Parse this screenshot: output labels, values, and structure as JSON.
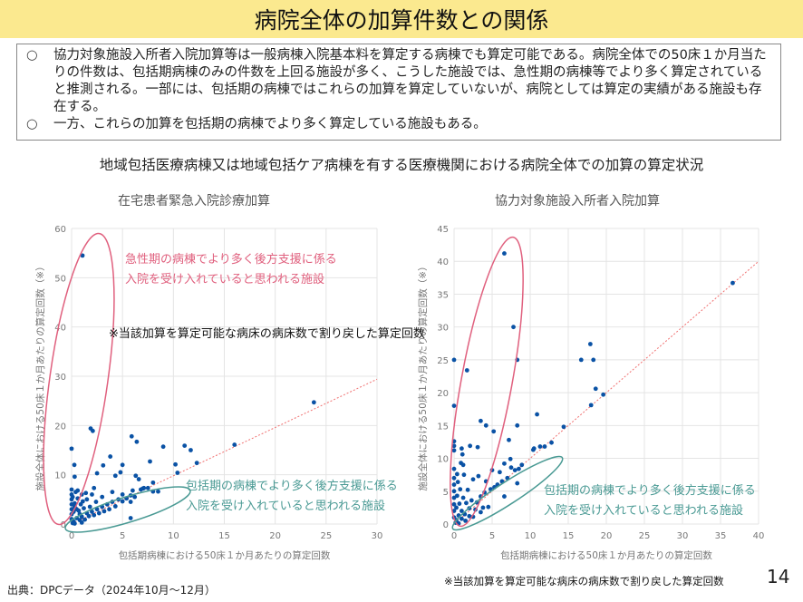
{
  "header": {
    "title": "病院全体の加算件数との関係"
  },
  "summary": {
    "bullet_mark": "○",
    "items": [
      "協力対象施設入所者入院加算等は一般病棟入院基本料を算定する病棟でも算定可能である。病院全体での50床１か月当たりの件数は、包括期病棟のみの件数を上回る施設が多く、こうした施設では、急性期の病棟等でより多く算定されていると推測される。一部には、包括期の病棟ではこれらの加算を算定していないが、病院としては算定の実績がある施設も存在する。",
      "一方、これらの加算を包括期の病棟でより多く算定している施設もある。"
    ]
  },
  "subtitle": "地域包括医療病棟又は地域包括ケア病棟を有する医療機関における病院全体での加算の算定状況",
  "note": "※当該加算を算定可能な病床の病床数で割り戻した算定回数",
  "source": "出典：DPCデータ（2024年10月～12月）",
  "page_number": "14",
  "colors": {
    "title_band": "#fbe98f",
    "dot": "#0a52a5",
    "acute_ellipse": "#e0607e",
    "inclusive_ellipse": "#4a9a94",
    "reference_line": "#f07070",
    "grid": "#e4e4e4"
  },
  "chart_data": [
    {
      "type": "scatter",
      "title": "在宅患者緊急入院診療加算",
      "xlabel": "包括期病棟における50床１か月あたりの算定回数",
      "ylabel": "施設全体における50床１か月あたりの算定回数（※）",
      "xlim": [
        0,
        30
      ],
      "ylim": [
        0,
        60
      ],
      "xticks": [
        0,
        5,
        10,
        15,
        20,
        25,
        30
      ],
      "yticks": [
        0,
        10,
        20,
        30,
        40,
        50,
        60
      ],
      "grid": true,
      "reference_line": {
        "style": "dotted",
        "from": [
          0,
          0
        ],
        "to": [
          30,
          29.4
        ]
      },
      "annotations": [
        {
          "text_lines": [
            "急性期の病棟でより多く後方支援に係る",
            "入院を受け入れていると思われる施設"
          ],
          "color": "#e0607e"
        },
        {
          "text_lines": [
            "包括期の病棟でより多く後方支援に係る",
            "入院を受け入れていると思われる施設"
          ],
          "color": "#4a9a94"
        }
      ],
      "points": [
        [
          1.07,
          54.5
        ],
        [
          1.87,
          19.4
        ],
        [
          2.08,
          18.9
        ],
        [
          0,
          15.3
        ],
        [
          5.9,
          17.8
        ],
        [
          6.4,
          16.7
        ],
        [
          9.0,
          15.7
        ],
        [
          11.1,
          15.9
        ],
        [
          11.7,
          15.0
        ],
        [
          12.3,
          12.4
        ],
        [
          16.0,
          16.1
        ],
        [
          23.8,
          24.7
        ],
        [
          3.8,
          13.7
        ],
        [
          0.27,
          12.0
        ],
        [
          0.3,
          9.6
        ],
        [
          3.1,
          11.9
        ],
        [
          5.0,
          12.0
        ],
        [
          10.2,
          12.1
        ],
        [
          10.4,
          10.4
        ],
        [
          7.7,
          12.7
        ],
        [
          2.5,
          10.3
        ],
        [
          4.3,
          9.8
        ],
        [
          4.8,
          10.5
        ],
        [
          6.3,
          9.8
        ],
        [
          6.6,
          9.1
        ],
        [
          8.0,
          8.4
        ],
        [
          8.5,
          6.6
        ],
        [
          5.8,
          1.2
        ],
        [
          8.0,
          6.6
        ],
        [
          7.1,
          7.3
        ],
        [
          0,
          1
        ],
        [
          0,
          2
        ],
        [
          0,
          3
        ],
        [
          0,
          4
        ],
        [
          0,
          5
        ],
        [
          0,
          6
        ],
        [
          0,
          7
        ],
        [
          0.2,
          0.5
        ],
        [
          0.2,
          2.5
        ],
        [
          0.3,
          4.2
        ],
        [
          0.4,
          6.5
        ],
        [
          0.5,
          1.2
        ],
        [
          0.5,
          3
        ],
        [
          0.6,
          5.2
        ],
        [
          0.8,
          0.8
        ],
        [
          0.8,
          2
        ],
        [
          0.9,
          4
        ],
        [
          1,
          6
        ],
        [
          1,
          1.5
        ],
        [
          1.2,
          3.2
        ],
        [
          1.3,
          0.9
        ],
        [
          1.5,
          2.2
        ],
        [
          1.5,
          5
        ],
        [
          1.7,
          1.6
        ],
        [
          1.8,
          3.5
        ],
        [
          2,
          2.5
        ],
        [
          2,
          6
        ],
        [
          2.2,
          1.8
        ],
        [
          2.4,
          4.5
        ],
        [
          2.5,
          3
        ],
        [
          2.7,
          2.2
        ],
        [
          3,
          3.5
        ],
        [
          3,
          5.5
        ],
        [
          3.2,
          2.6
        ],
        [
          3.5,
          4
        ],
        [
          3.7,
          3
        ],
        [
          4,
          4.5
        ],
        [
          4,
          6.5
        ],
        [
          4.3,
          3.6
        ],
        [
          4.6,
          5
        ],
        [
          5,
          4.6
        ],
        [
          5,
          6
        ],
        [
          5.4,
          5.2
        ],
        [
          5.8,
          5.8
        ],
        [
          6,
          6.8
        ],
        [
          6.2,
          5.5
        ],
        [
          6.8,
          7
        ],
        [
          7,
          7.2
        ],
        [
          7.5,
          7.3
        ],
        [
          5.8,
          4.5
        ],
        [
          0.1,
          0.2
        ],
        [
          0.3,
          0.1
        ],
        [
          1,
          0.3
        ],
        [
          0.1,
          5.5
        ],
        [
          0.6,
          6.8
        ],
        [
          1.4,
          6.3
        ],
        [
          2.2,
          7.3
        ],
        [
          0.3,
          3.5
        ],
        [
          0.7,
          2.7
        ],
        [
          1.1,
          4.6
        ]
      ]
    },
    {
      "type": "scatter",
      "title": "協力対象施設入所者入院加算",
      "xlabel": "包括期病棟における50床１か月あたりの算定回数",
      "ylabel": "施設全体における50床１か月あたりの算定回数（※）",
      "xlim": [
        0,
        40
      ],
      "ylim": [
        0,
        45
      ],
      "xticks": [
        0,
        5,
        10,
        15,
        20,
        25,
        30,
        35,
        40
      ],
      "yticks": [
        0,
        5,
        10,
        15,
        20,
        25,
        30,
        35,
        40,
        45
      ],
      "grid": true,
      "reference_line": {
        "style": "dotted",
        "from": [
          0,
          0
        ],
        "to": [
          40,
          40
        ]
      },
      "annotations": [
        {
          "text_lines": [
            "包括期の病棟でより多く後方支援に係る",
            "入院を受け入れていると思われる施設"
          ],
          "color": "#4a9a94"
        }
      ],
      "points": [
        [
          6.6,
          41.2
        ],
        [
          7.8,
          30.0
        ],
        [
          0,
          25.0
        ],
        [
          8.3,
          25.0
        ],
        [
          1.7,
          23.4
        ],
        [
          0,
          18.0
        ],
        [
          17.9,
          27.4
        ],
        [
          16.7,
          25.0
        ],
        [
          18.3,
          25.0
        ],
        [
          18.6,
          20.6
        ],
        [
          19.6,
          19.7
        ],
        [
          18.0,
          18.1
        ],
        [
          36.6,
          36.7
        ],
        [
          10.9,
          16.7
        ],
        [
          14.4,
          14.8
        ],
        [
          3.5,
          15.7
        ],
        [
          4.2,
          15.0
        ],
        [
          5.2,
          14.1
        ],
        [
          8.3,
          15.0
        ],
        [
          7.2,
          12.8
        ],
        [
          12.8,
          12.4
        ],
        [
          11.9,
          11.8
        ],
        [
          11.3,
          11.8
        ],
        [
          10.4,
          11.3
        ],
        [
          10.5,
          11.5
        ],
        [
          0,
          12.6
        ],
        [
          0,
          11.9
        ],
        [
          0,
          11.2
        ],
        [
          1.0,
          11.5
        ],
        [
          1.1,
          10.6
        ],
        [
          2.1,
          11.9
        ],
        [
          3.1,
          11.7
        ],
        [
          7.4,
          9.9
        ],
        [
          8.9,
          9.0
        ],
        [
          8.3,
          6.2
        ],
        [
          6.6,
          4.2
        ],
        [
          0,
          1
        ],
        [
          0,
          2
        ],
        [
          0,
          3
        ],
        [
          0,
          4
        ],
        [
          0,
          5
        ],
        [
          0,
          6
        ],
        [
          0,
          7
        ],
        [
          0,
          8.4
        ],
        [
          0.3,
          0.6
        ],
        [
          0.3,
          2.5
        ],
        [
          0.4,
          4.3
        ],
        [
          0.5,
          6.4
        ],
        [
          0.6,
          1.3
        ],
        [
          0.7,
          3.1
        ],
        [
          0.8,
          5.3
        ],
        [
          1,
          0.8
        ],
        [
          1,
          2
        ],
        [
          1.2,
          4
        ],
        [
          1.3,
          7.5
        ],
        [
          1.4,
          1.5
        ],
        [
          1.6,
          3.2
        ],
        [
          1.8,
          5.2
        ],
        [
          2,
          1.2
        ],
        [
          2,
          2.4
        ],
        [
          2.3,
          3.6
        ],
        [
          2.5,
          6.8
        ],
        [
          2.8,
          2.2
        ],
        [
          3,
          3.3
        ],
        [
          3.2,
          7.3
        ],
        [
          3.5,
          4.2
        ],
        [
          3.8,
          2.5
        ],
        [
          4,
          4.8
        ],
        [
          4.2,
          6.5
        ],
        [
          4.5,
          2.6
        ],
        [
          4.8,
          5.3
        ],
        [
          5,
          8.2
        ],
        [
          5.3,
          5.6
        ],
        [
          5.7,
          6
        ],
        [
          6,
          7.9
        ],
        [
          6.3,
          6.5
        ],
        [
          6.6,
          9.2
        ],
        [
          7,
          7
        ],
        [
          7.5,
          8.6
        ],
        [
          8,
          8.2
        ],
        [
          8.5,
          8.4
        ],
        [
          0.2,
          0.2
        ],
        [
          0.6,
          0.1
        ],
        [
          1.5,
          0.5
        ],
        [
          2.5,
          1.1
        ],
        [
          3.5,
          1.8
        ],
        [
          0.9,
          9.3
        ],
        [
          1.2,
          9
        ],
        [
          0.4,
          7.6
        ]
      ]
    }
  ]
}
